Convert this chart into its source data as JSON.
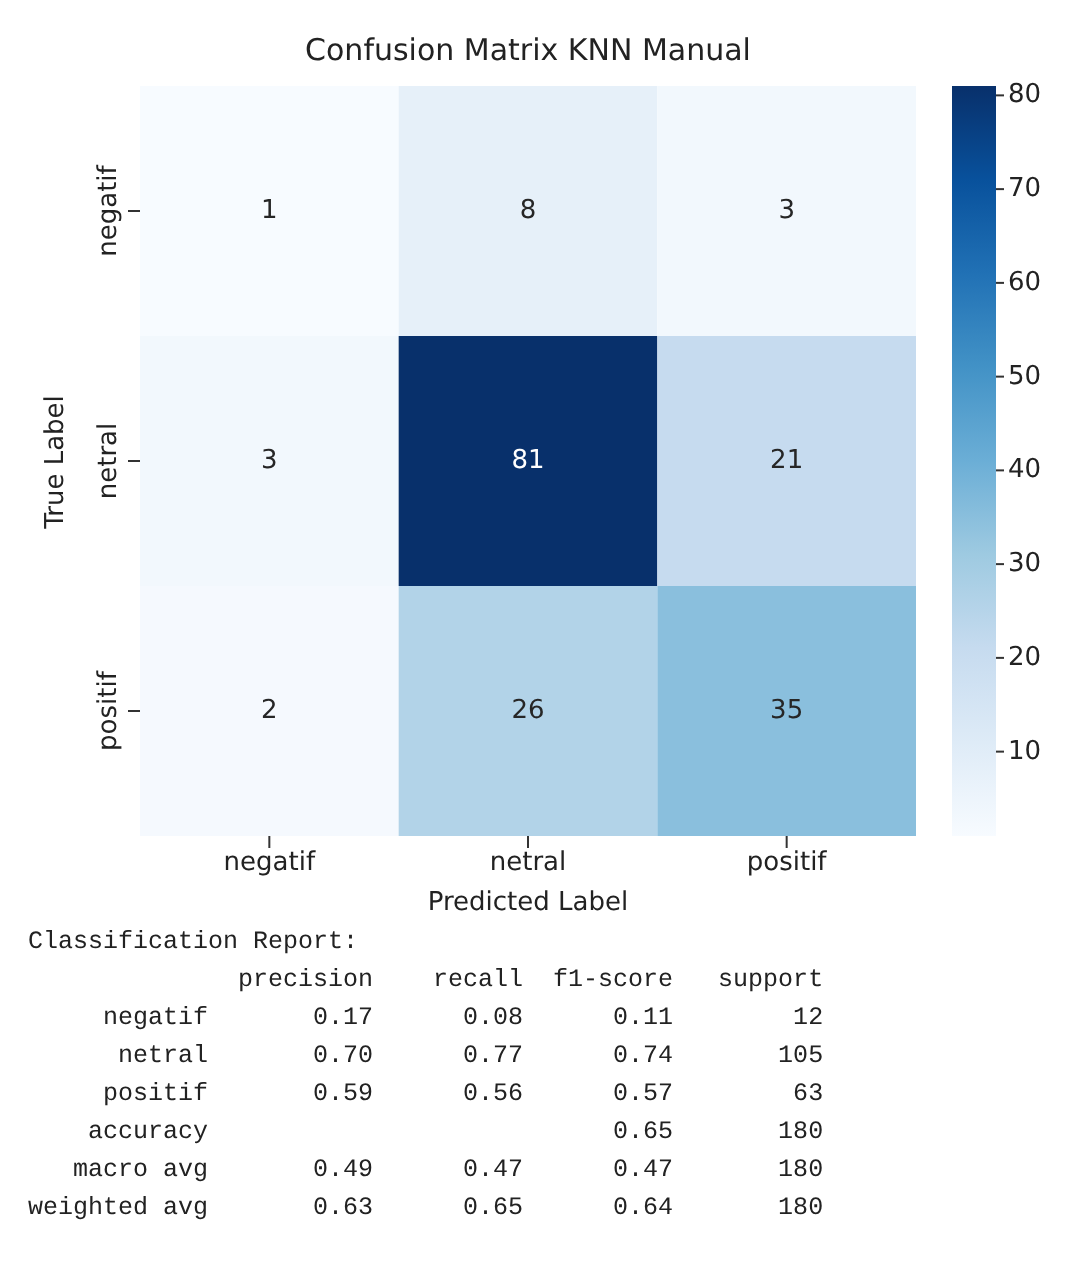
{
  "chart_data": {
    "type": "heatmap",
    "title": "Confusion Matrix KNN Manual",
    "xlabel": "Predicted Label",
    "ylabel": "True Label",
    "categories": [
      "negatif",
      "netral",
      "positif"
    ],
    "y_categories": [
      "negatif",
      "netral",
      "positif"
    ],
    "cells": [
      [
        1,
        8,
        3
      ],
      [
        3,
        81,
        21
      ],
      [
        2,
        26,
        35
      ]
    ],
    "data_labels": true,
    "clim": [
      1,
      81
    ],
    "cticks": [
      10,
      20,
      30,
      40,
      50,
      60,
      70,
      80
    ],
    "annotations": [
      "Classification Report:",
      "              precision    recall  f1-score   support",
      "     negatif       0.17      0.08      0.11        12",
      "      netral       0.70      0.77      0.74       105",
      "     positif       0.59      0.56      0.57        63",
      "    accuracy                           0.65       180",
      "   macro avg       0.49      0.47      0.47       180",
      "weighted avg       0.63      0.65      0.64       180"
    ]
  }
}
